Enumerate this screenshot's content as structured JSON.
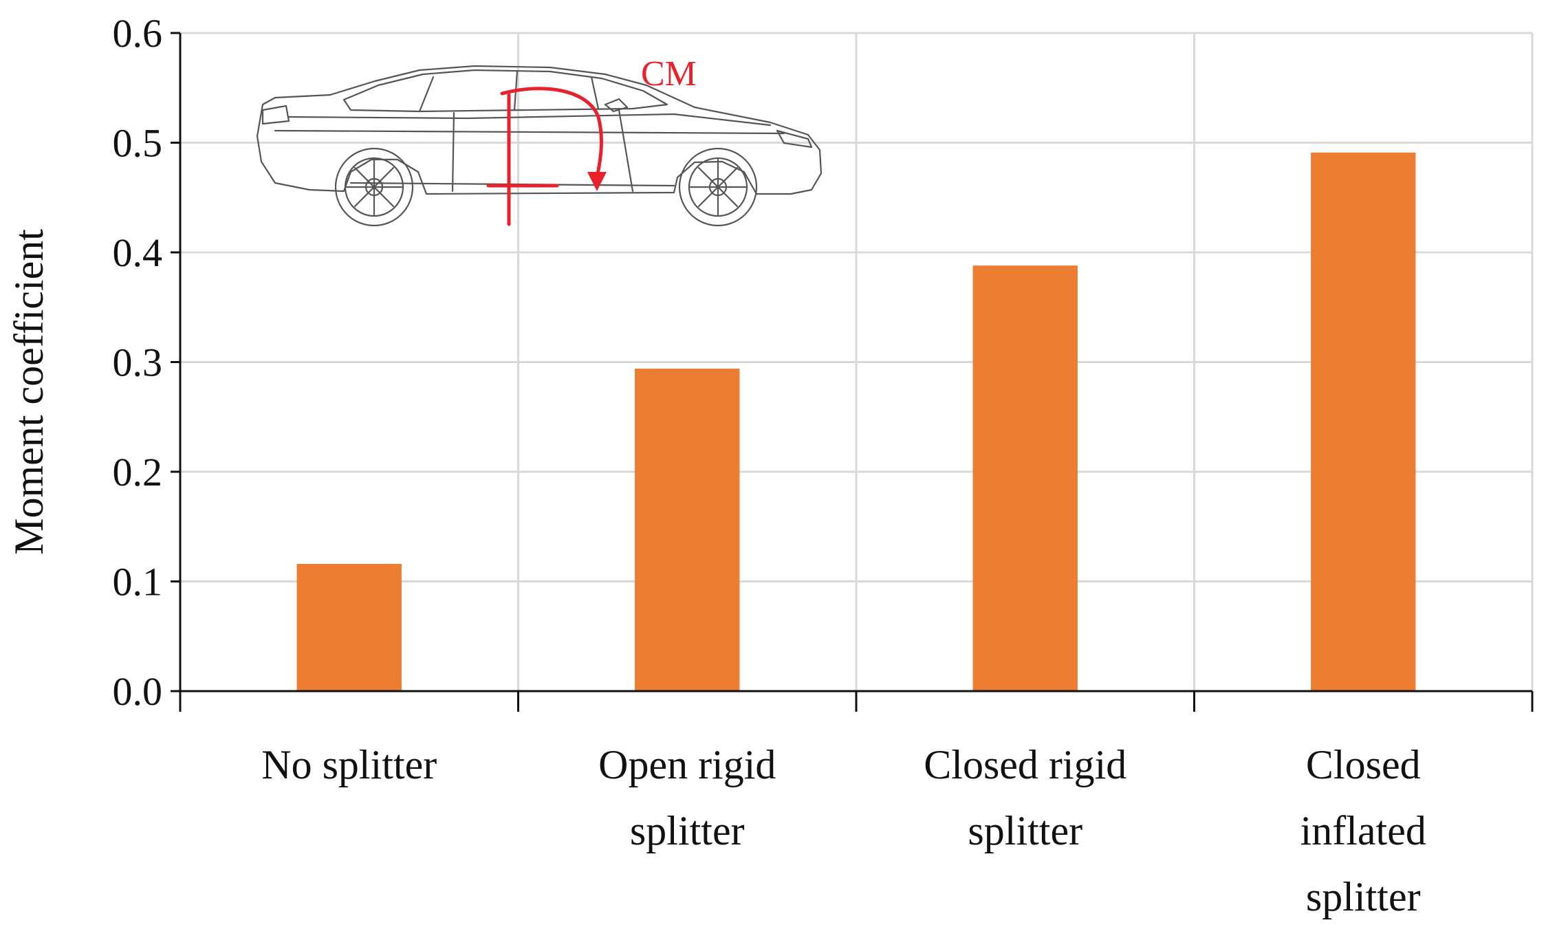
{
  "chart_data": {
    "type": "bar",
    "title": "",
    "xlabel": "",
    "ylabel": "Moment coefficient",
    "categories": [
      [
        "No splitter"
      ],
      [
        "Open rigid",
        "splitter"
      ],
      [
        "Closed rigid",
        "splitter"
      ],
      [
        "Closed",
        "inflated",
        "splitter"
      ]
    ],
    "values": [
      0.116,
      0.294,
      0.388,
      0.491
    ],
    "ylim": [
      0.0,
      0.6
    ],
    "yticks": [
      "0.0",
      "0.1",
      "0.2",
      "0.3",
      "0.4",
      "0.5",
      "0.6"
    ],
    "grid": true,
    "legend": "none",
    "bar_color": "#ed7d31",
    "grid_color": "#d9d9d9",
    "inset": {
      "image": "car-side-view-with-moment-arrow",
      "label": "CM"
    }
  }
}
